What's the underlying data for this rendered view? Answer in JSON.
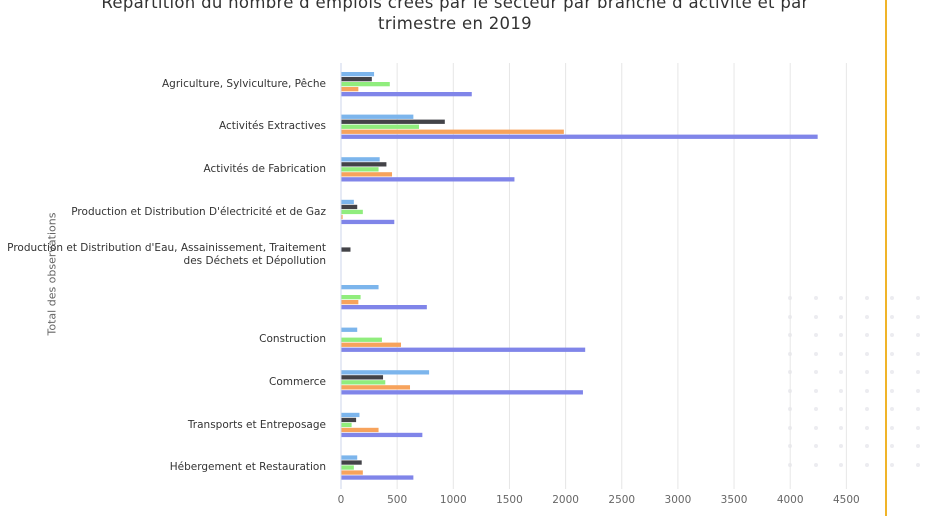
{
  "chart_data": {
    "type": "bar",
    "orientation": "horizontal",
    "title_lines": [
      "Répartition du nombre d’emplois créés par le secteur par branche d’activité et par",
      "trimestre en 2019"
    ],
    "ylabel": "Total des observations",
    "xlabel": "",
    "xlim": [
      0,
      4500
    ],
    "xticks": [
      0,
      500,
      1000,
      1500,
      2000,
      2500,
      3000,
      3500,
      4000,
      4500
    ],
    "grid": true,
    "legend": "none",
    "categories": [
      "Agriculture, Sylviculture, Pêche",
      "Activités Extractives",
      "Activités de Fabrication",
      "Production et Distribution D'électricité et de Gaz",
      "Production et Distribution d'Eau, Assainissement, Traitement des Déchets et Dépollution",
      "",
      "Construction",
      "Commerce",
      "Transports et Entreposage",
      "Hébergement et Restauration"
    ],
    "series": [
      {
        "color": "#7cb5ec",
        "values": [
          290,
          640,
          340,
          110,
          0,
          330,
          140,
          780,
          160,
          140
        ]
      },
      {
        "color": "#434348",
        "values": [
          270,
          920,
          400,
          140,
          80,
          0,
          0,
          370,
          130,
          180
        ]
      },
      {
        "color": "#90ed7d",
        "values": [
          430,
          690,
          330,
          190,
          0,
          170,
          360,
          390,
          90,
          110
        ]
      },
      {
        "color": "#f7a35c",
        "values": [
          150,
          1980,
          450,
          10,
          0,
          150,
          530,
          610,
          330,
          190
        ]
      },
      {
        "color": "#8085e9",
        "values": [
          1160,
          4240,
          1540,
          470,
          0,
          760,
          2170,
          2150,
          720,
          640
        ]
      }
    ]
  }
}
